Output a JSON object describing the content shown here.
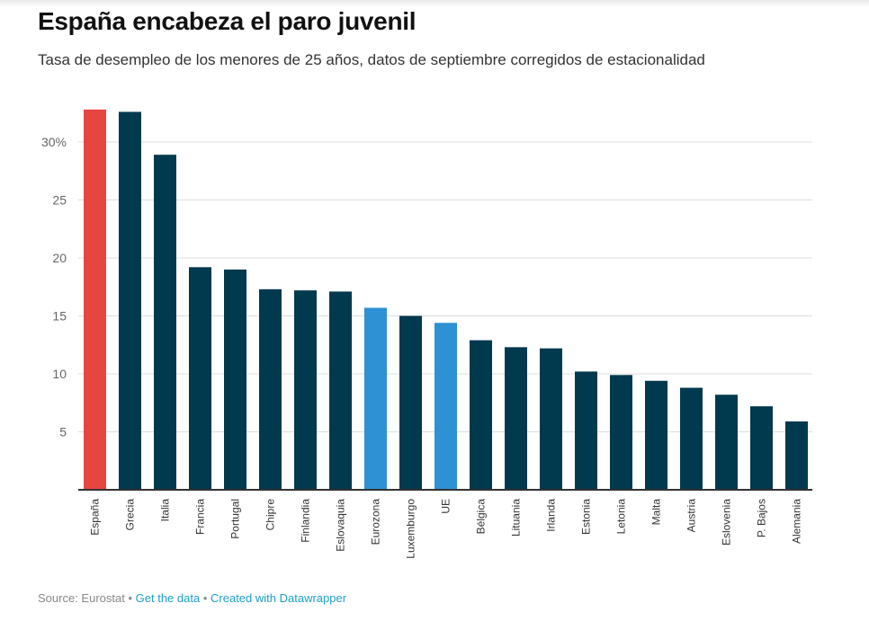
{
  "title": "España encabeza el paro juvenil",
  "subtitle": "Tasa de desempleo de los menores de 25 años, datos de septiembre corregidos de estacionalidad",
  "footer": {
    "source": "Source: Eurostat",
    "separator": "•",
    "get_data": "Get the data",
    "created_with": "Created with Datawrapper"
  },
  "colors": {
    "default": "#01394f",
    "highlight_spain": "#e64640",
    "highlight_aggregate": "#2d91d3",
    "grid": "#dddddd",
    "axis": "#333333",
    "tick_label": "#666666"
  },
  "chart_data": {
    "type": "bar",
    "categories": [
      "España",
      "Grecia",
      "Italia",
      "Francia",
      "Portugal",
      "Chipre",
      "Finlandia",
      "Eslovaquia",
      "Eurozona",
      "Luxemburgo",
      "UE",
      "Bélgica",
      "Lituania",
      "Irlanda",
      "Estonia",
      "Letonia",
      "Malta",
      "Austria",
      "Eslovenia",
      "P. Bajos",
      "Alemania"
    ],
    "values": [
      32.8,
      32.6,
      28.9,
      19.2,
      19.0,
      17.3,
      17.2,
      17.1,
      15.7,
      15.0,
      14.4,
      12.9,
      12.3,
      12.2,
      10.2,
      9.9,
      9.4,
      8.8,
      8.2,
      7.2,
      5.9
    ],
    "highlight": {
      "España": "highlight_spain",
      "Eurozona": "highlight_aggregate",
      "UE": "highlight_aggregate"
    },
    "yticks": [
      5,
      10,
      15,
      20,
      25,
      30
    ],
    "ytick_labels": [
      "5",
      "10",
      "15",
      "20",
      "25",
      "30%"
    ],
    "ylim": [
      0,
      35
    ],
    "grid": true,
    "xlabel": "",
    "ylabel": ""
  }
}
